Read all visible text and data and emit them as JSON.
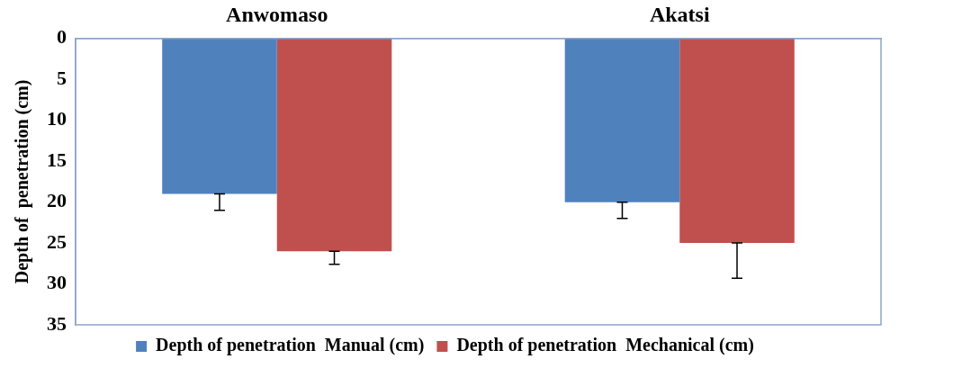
{
  "chart_data": {
    "type": "bar",
    "ylabel": "Depth of  penetration (cm)",
    "categories": [
      "Anwomaso",
      "Akatsi"
    ],
    "series": [
      {
        "name": "Depth of penetration  Manual (cm)",
        "color": "#4f81bd",
        "values": [
          19,
          20
        ],
        "errors": [
          [
            19,
            21
          ],
          [
            20,
            22
          ]
        ]
      },
      {
        "name": "Depth of penetration  Mechanical (cm)",
        "color": "#c0504d",
        "values": [
          26,
          25
        ],
        "errors": [
          [
            26,
            27.6
          ],
          [
            25,
            29.3
          ]
        ]
      }
    ],
    "ylim": [
      35,
      0
    ],
    "yticks": [
      0,
      5,
      10,
      15,
      20,
      25,
      30,
      35
    ],
    "grid": false,
    "legend": "bottom"
  }
}
